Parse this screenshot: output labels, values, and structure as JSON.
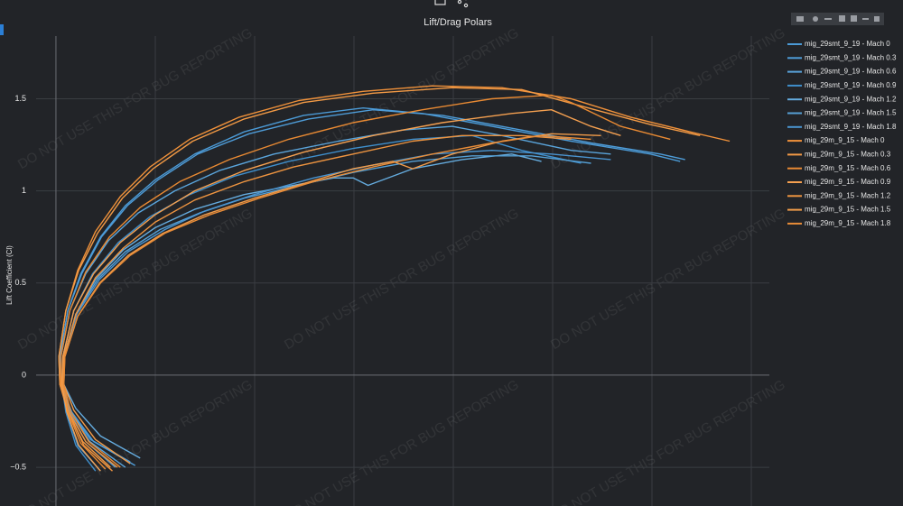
{
  "chart_data": {
    "type": "line",
    "title": "Lift/Drag Polars",
    "y_label": "Lift Coefficient (Cl)",
    "watermark": "DO NOT USE THIS FOR BUG REPORTING",
    "xlim": [
      -0.02,
      0.72
    ],
    "ylim": [
      -0.71,
      1.84
    ],
    "yticks": [
      {
        "value": -0.5,
        "label": "−0.5"
      },
      0,
      0.5,
      1,
      1.5
    ],
    "grid": true,
    "legend": "right",
    "series": [
      {
        "name": "mig_29smt_9_19 - Mach 0",
        "color": "#4b9ad6",
        "x": [
          0.075,
          0.035,
          0.015,
          0.005,
          0.004,
          0.012,
          0.025,
          0.045,
          0.07,
          0.1,
          0.14,
          0.19,
          0.25,
          0.31,
          0.37,
          0.44,
          0.52,
          0.6,
          0.63
        ],
        "values": [
          -0.47,
          -0.35,
          -0.2,
          -0.05,
          0.1,
          0.35,
          0.55,
          0.75,
          0.92,
          1.06,
          1.2,
          1.32,
          1.41,
          1.45,
          1.42,
          1.35,
          1.27,
          1.2,
          1.16
        ]
      },
      {
        "name": "mig_29smt_9_19 - Mach 0.3",
        "color": "#4e9cd8",
        "x": [
          0.08,
          0.038,
          0.016,
          0.005,
          0.004,
          0.012,
          0.026,
          0.046,
          0.072,
          0.103,
          0.143,
          0.195,
          0.255,
          0.32,
          0.39,
          0.46,
          0.54,
          0.61,
          0.635
        ],
        "values": [
          -0.49,
          -0.36,
          -0.2,
          -0.05,
          0.1,
          0.35,
          0.55,
          0.75,
          0.92,
          1.06,
          1.2,
          1.31,
          1.39,
          1.44,
          1.41,
          1.34,
          1.26,
          1.2,
          1.17
        ]
      },
      {
        "name": "mig_29smt_9_19 - Mach 0.6",
        "color": "#5aa5dc",
        "x": [
          0.07,
          0.034,
          0.015,
          0.005,
          0.005,
          0.014,
          0.03,
          0.053,
          0.083,
          0.12,
          0.165,
          0.22,
          0.285,
          0.35,
          0.4,
          0.45,
          0.52,
          0.56
        ],
        "values": [
          -0.5,
          -0.36,
          -0.2,
          -0.05,
          0.1,
          0.35,
          0.55,
          0.73,
          0.88,
          1.0,
          1.11,
          1.2,
          1.27,
          1.33,
          1.35,
          1.3,
          1.22,
          1.2
        ]
      },
      {
        "name": "mig_29smt_9_19 - Mach 0.9",
        "color": "#3f8fcc",
        "x": [
          0.04,
          0.02,
          0.01,
          0.006,
          0.007,
          0.018,
          0.037,
          0.063,
          0.095,
          0.135,
          0.18,
          0.235,
          0.3,
          0.36,
          0.42,
          0.47,
          0.53
        ],
        "values": [
          -0.52,
          -0.38,
          -0.2,
          -0.05,
          0.1,
          0.35,
          0.55,
          0.72,
          0.86,
          0.98,
          1.08,
          1.16,
          1.23,
          1.28,
          1.3,
          1.22,
          1.15
        ]
      },
      {
        "name": "mig_29smt_9_19 - Mach 1.2",
        "color": "#65acdf",
        "x": [
          0.085,
          0.045,
          0.02,
          0.008,
          0.008,
          0.02,
          0.04,
          0.068,
          0.1,
          0.14,
          0.19,
          0.24,
          0.28,
          0.3,
          0.315,
          0.36,
          0.41,
          0.46,
          0.49
        ],
        "values": [
          -0.45,
          -0.33,
          -0.18,
          -0.05,
          0.1,
          0.33,
          0.52,
          0.68,
          0.8,
          0.9,
          0.98,
          1.03,
          1.07,
          1.07,
          1.03,
          1.12,
          1.17,
          1.2,
          1.16
        ]
      },
      {
        "name": "mig_29smt_9_19 - Mach 1.5",
        "color": "#559fd4",
        "x": [
          0.06,
          0.03,
          0.014,
          0.007,
          0.008,
          0.02,
          0.042,
          0.07,
          0.105,
          0.145,
          0.19,
          0.245,
          0.3,
          0.36,
          0.42,
          0.48,
          0.54
        ],
        "values": [
          -0.5,
          -0.36,
          -0.2,
          -0.05,
          0.1,
          0.33,
          0.52,
          0.67,
          0.79,
          0.88,
          0.96,
          1.03,
          1.1,
          1.16,
          1.19,
          1.19,
          1.15
        ]
      },
      {
        "name": "mig_29smt_9_19 - Mach 1.8",
        "color": "#4a94d0",
        "x": [
          0.045,
          0.022,
          0.011,
          0.006,
          0.008,
          0.021,
          0.044,
          0.073,
          0.11,
          0.15,
          0.2,
          0.26,
          0.32,
          0.38,
          0.44,
          0.5,
          0.56
        ],
        "values": [
          -0.52,
          -0.38,
          -0.2,
          -0.05,
          0.1,
          0.33,
          0.52,
          0.67,
          0.79,
          0.89,
          0.98,
          1.07,
          1.14,
          1.2,
          1.22,
          1.2,
          1.17
        ]
      },
      {
        "name": "mig_29m_9_15 - Mach 0",
        "color": "#f0913a",
        "x": [
          0.062,
          0.03,
          0.013,
          0.004,
          0.003,
          0.01,
          0.022,
          0.04,
          0.065,
          0.095,
          0.135,
          0.185,
          0.245,
          0.31,
          0.38,
          0.45,
          0.52,
          0.58,
          0.64,
          0.68
        ],
        "values": [
          -0.5,
          -0.36,
          -0.2,
          -0.05,
          0.1,
          0.35,
          0.57,
          0.78,
          0.97,
          1.13,
          1.28,
          1.4,
          1.49,
          1.54,
          1.57,
          1.56,
          1.5,
          1.4,
          1.32,
          1.27
        ]
      },
      {
        "name": "mig_29m_9_15 - Mach 0.3",
        "color": "#f39a45",
        "x": [
          0.055,
          0.027,
          0.012,
          0.004,
          0.003,
          0.01,
          0.023,
          0.042,
          0.067,
          0.098,
          0.138,
          0.19,
          0.25,
          0.32,
          0.4,
          0.47,
          0.53,
          0.6,
          0.65
        ],
        "values": [
          -0.5,
          -0.36,
          -0.2,
          -0.05,
          0.1,
          0.35,
          0.57,
          0.77,
          0.96,
          1.12,
          1.27,
          1.39,
          1.48,
          1.53,
          1.56,
          1.55,
          1.46,
          1.36,
          1.3
        ]
      },
      {
        "name": "mig_29m_9_15 - Mach 0.6",
        "color": "#e98a33",
        "x": [
          0.05,
          0.025,
          0.012,
          0.005,
          0.005,
          0.014,
          0.03,
          0.054,
          0.085,
          0.125,
          0.175,
          0.235,
          0.3,
          0.37,
          0.44,
          0.5,
          0.52,
          0.57,
          0.62
        ],
        "values": [
          -0.51,
          -0.37,
          -0.2,
          -0.05,
          0.1,
          0.35,
          0.56,
          0.75,
          0.91,
          1.05,
          1.17,
          1.28,
          1.37,
          1.44,
          1.5,
          1.52,
          1.48,
          1.35,
          1.28
        ]
      },
      {
        "name": "mig_29m_9_15 - Mach 0.9",
        "color": "#f5a050",
        "x": [
          0.045,
          0.023,
          0.011,
          0.006,
          0.007,
          0.018,
          0.038,
          0.065,
          0.1,
          0.14,
          0.19,
          0.25,
          0.32,
          0.39,
          0.46,
          0.5,
          0.54,
          0.57
        ],
        "values": [
          -0.52,
          -0.38,
          -0.2,
          -0.05,
          0.1,
          0.35,
          0.55,
          0.72,
          0.87,
          1.0,
          1.11,
          1.21,
          1.3,
          1.37,
          1.42,
          1.44,
          1.35,
          1.3
        ]
      },
      {
        "name": "mig_29m_9_15 - Mach 1.2",
        "color": "#ee9440",
        "x": [
          0.057,
          0.028,
          0.013,
          0.007,
          0.008,
          0.02,
          0.04,
          0.068,
          0.1,
          0.14,
          0.19,
          0.24,
          0.3,
          0.36,
          0.41,
          0.47,
          0.52
        ],
        "values": [
          -0.52,
          -0.38,
          -0.2,
          -0.05,
          0.1,
          0.33,
          0.53,
          0.69,
          0.83,
          0.95,
          1.05,
          1.13,
          1.2,
          1.27,
          1.3,
          1.3,
          1.28
        ]
      },
      {
        "name": "mig_29m_9_15 - Mach 1.5",
        "color": "#f29c4a",
        "x": [
          0.075,
          0.04,
          0.018,
          0.008,
          0.009,
          0.022,
          0.044,
          0.073,
          0.108,
          0.15,
          0.2,
          0.25,
          0.3,
          0.34,
          0.36,
          0.4,
          0.45,
          0.5,
          0.55
        ],
        "values": [
          -0.48,
          -0.35,
          -0.19,
          -0.05,
          0.1,
          0.32,
          0.5,
          0.65,
          0.77,
          0.87,
          0.96,
          1.04,
          1.12,
          1.16,
          1.12,
          1.2,
          1.27,
          1.31,
          1.3
        ]
      },
      {
        "name": "mig_29m_9_15 - Mach 1.8",
        "color": "#e88c38",
        "x": [
          0.065,
          0.033,
          0.015,
          0.008,
          0.009,
          0.022,
          0.045,
          0.075,
          0.11,
          0.155,
          0.205,
          0.26,
          0.32,
          0.38,
          0.44,
          0.49,
          0.54
        ],
        "values": [
          -0.5,
          -0.36,
          -0.2,
          -0.05,
          0.1,
          0.32,
          0.5,
          0.65,
          0.77,
          0.87,
          0.96,
          1.05,
          1.13,
          1.2,
          1.26,
          1.3,
          1.28
        ]
      }
    ]
  }
}
